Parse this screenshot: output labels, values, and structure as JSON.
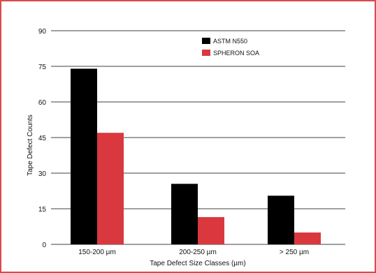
{
  "chart_data": {
    "type": "bar",
    "categories": [
      "150-200 µm",
      "200-250 µm",
      "> 250 µm"
    ],
    "series": [
      {
        "name": "ASTM N550",
        "values": [
          74,
          25.5,
          20.5
        ],
        "color": "#000000"
      },
      {
        "name": "SPHERON SOA",
        "values": [
          47,
          11.5,
          5
        ],
        "color": "#d9383f"
      }
    ],
    "yticks": [
      0,
      15,
      30,
      45,
      60,
      75,
      90
    ],
    "ylim": [
      0,
      90
    ],
    "xlabel": "Tape Defect Size Classes (µm)",
    "ylabel": "Tape Defect Counts",
    "grid": "horizontal",
    "legend_position": "top-right"
  },
  "colors": {
    "border": "#d94a4a",
    "grid": "#000000"
  }
}
